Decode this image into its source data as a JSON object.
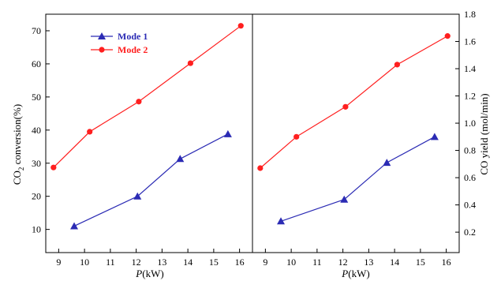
{
  "chart_data": [
    {
      "type": "line",
      "panel": "left",
      "xlabel_italic": "P",
      "xlabel_rest": "(kW)",
      "ylabel": "CO2 conversion(%)",
      "ylabel_main": "CO",
      "ylabel_sub": "2",
      "ylabel_rest": " conversion(%)",
      "xlim": [
        8.5,
        16.5
      ],
      "ylim": [
        3,
        75
      ],
      "x_ticks": [
        "9",
        "10",
        "11",
        "12",
        "13",
        "14",
        "15",
        "16"
      ],
      "y_ticks": [
        "10",
        "20",
        "30",
        "40",
        "50",
        "60",
        "70"
      ],
      "legend_position": "top-left",
      "series": [
        {
          "name": "Mode 1",
          "color": "#2b2bb4",
          "marker": "triangle",
          "x": [
            9.6,
            12.05,
            13.7,
            15.55
          ],
          "y": [
            11,
            20,
            31.3,
            38.8
          ]
        },
        {
          "name": "Mode 2",
          "color": "#ff1f1f",
          "marker": "circle",
          "x": [
            8.8,
            10.2,
            12.1,
            14.1,
            16.05
          ],
          "y": [
            28.7,
            39.5,
            48.6,
            60.2,
            71.5
          ]
        }
      ]
    },
    {
      "type": "line",
      "panel": "right",
      "xlabel_italic": "P",
      "xlabel_rest": "(kW)",
      "ylabel": "CO yield (mol/min)",
      "xlim": [
        8.5,
        16.5
      ],
      "ylim": [
        0.05,
        1.8
      ],
      "x_ticks": [
        "9",
        "10",
        "11",
        "12",
        "13",
        "14",
        "15",
        "16"
      ],
      "y_ticks": [
        "0.2",
        "0.4",
        "0.6",
        "0.8",
        "1.0",
        "1.2",
        "1.4",
        "1.6",
        "1.8"
      ],
      "series": [
        {
          "name": "Mode 1",
          "color": "#2b2bb4",
          "marker": "triangle",
          "x": [
            9.6,
            12.05,
            13.7,
            15.55
          ],
          "y": [
            0.28,
            0.44,
            0.71,
            0.9
          ]
        },
        {
          "name": "Mode 2",
          "color": "#ff1f1f",
          "marker": "circle",
          "x": [
            8.8,
            10.2,
            12.1,
            14.1,
            16.05
          ],
          "y": [
            0.67,
            0.9,
            1.12,
            1.43,
            1.64
          ]
        }
      ]
    }
  ]
}
